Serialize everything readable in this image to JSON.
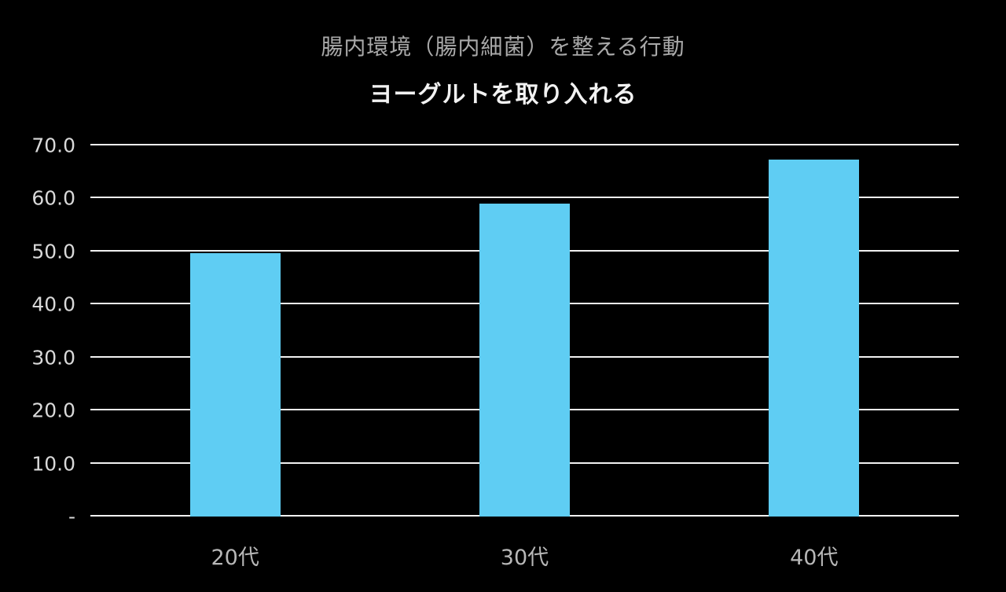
{
  "header": {
    "title": "腸内環境（腸内細菌）を整える行動",
    "subtitle": "ヨーグルトを取り入れる"
  },
  "chart_data": {
    "type": "bar",
    "title": "腸内環境（腸内細菌）を整える行動",
    "subtitle": "ヨーグルトを取り入れる",
    "categories": [
      "20代",
      "30代",
      "40代"
    ],
    "values": [
      49.7,
      59.0,
      67.4
    ],
    "xlabel": "",
    "ylabel": "",
    "ylim": [
      0,
      70
    ],
    "yticks": [
      {
        "value": 70,
        "label": "70.0"
      },
      {
        "value": 60,
        "label": "60.0"
      },
      {
        "value": 50,
        "label": "50.0"
      },
      {
        "value": 40,
        "label": "40.0"
      },
      {
        "value": 30,
        "label": "30.0"
      },
      {
        "value": 20,
        "label": "20.0"
      },
      {
        "value": 10,
        "label": "10.0"
      },
      {
        "value": 0,
        "label": "-"
      }
    ],
    "grid": true,
    "legend": false,
    "bar_color": "#5FCDF3",
    "background_color": "#000000",
    "gridline_color": "#f2f2f2",
    "title_color": "#a9a9a9",
    "axis_text_color": "#d9d9d9"
  }
}
